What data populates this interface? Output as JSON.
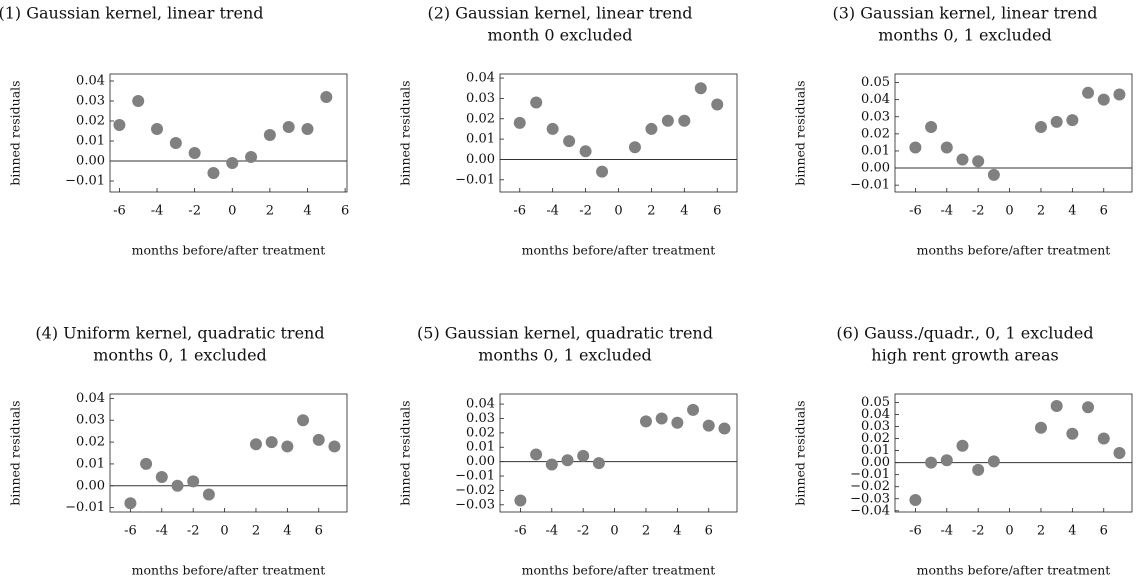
{
  "chart_data": [
    {
      "type": "scatter",
      "title": "(1) Gaussian kernel, linear trend",
      "ylabel": "binned residuals",
      "xlabel": "months before/after treatment",
      "color": "#808080",
      "hline": 0,
      "x": [
        -6,
        -5,
        -4,
        -3,
        -2,
        -1,
        0,
        1,
        2,
        3,
        4,
        5
      ],
      "values": [
        0.018,
        0.03,
        0.016,
        0.009,
        0.004,
        -0.006,
        -0.001,
        0.002,
        0.013,
        0.017,
        0.016,
        0.032
      ],
      "xlim": [
        -6.5,
        6.1
      ],
      "xticks": [
        {
          "value": -6,
          "label": "-6"
        },
        {
          "value": -4,
          "label": "-4"
        },
        {
          "value": -2,
          "label": "-2"
        },
        0,
        2,
        4,
        6
      ],
      "ylim": [
        -0.0155,
        0.0435
      ],
      "yticks": [
        {
          "value": -0.01,
          "label": "−0.01"
        },
        {
          "value": 0,
          "label": "0.00"
        },
        0.01,
        0.02,
        0.03,
        0.04
      ]
    },
    {
      "type": "scatter",
      "title": "(2) Gaussian kernel, linear trend",
      "subtitle": "month 0 excluded",
      "ylabel": "binned residuals",
      "xlabel": "months before/after treatment",
      "color": "#808080",
      "hline": 0,
      "x": [
        -6,
        -5,
        -4,
        -3,
        -2,
        -1,
        1,
        2,
        3,
        4,
        5,
        6
      ],
      "values": [
        0.018,
        0.028,
        0.015,
        0.009,
        0.004,
        -0.006,
        0.006,
        0.015,
        0.019,
        0.019,
        0.035,
        0.027
      ],
      "xlim": [
        -7.2,
        7.2
      ],
      "xticks": [
        {
          "value": -6,
          "label": "-6"
        },
        {
          "value": -4,
          "label": "-4"
        },
        {
          "value": -2,
          "label": "-2"
        },
        0,
        2,
        4,
        6
      ],
      "ylim": [
        -0.016,
        0.042
      ],
      "yticks": [
        {
          "value": -0.01,
          "label": "−0.01"
        },
        {
          "value": 0,
          "label": "0.00"
        },
        0.01,
        0.02,
        0.03,
        0.04
      ]
    },
    {
      "type": "scatter",
      "title": "(3) Gaussian kernel, linear trend",
      "subtitle": "months 0, 1 excluded",
      "ylabel": "binned residuals",
      "xlabel": "months before/after treatment",
      "color": "#808080",
      "hline": 0,
      "x": [
        -6,
        -5,
        -4,
        -3,
        -2,
        -1,
        2,
        3,
        4,
        5,
        6,
        7
      ],
      "values": [
        0.012,
        0.024,
        0.012,
        0.005,
        0.004,
        -0.004,
        0.024,
        0.027,
        0.028,
        0.044,
        0.04,
        0.043
      ],
      "xlim": [
        -7.3,
        7.8
      ],
      "xticks": [
        {
          "value": -6,
          "label": "-6"
        },
        {
          "value": -4,
          "label": "-4"
        },
        {
          "value": -2,
          "label": "-2"
        },
        0,
        2,
        4,
        6
      ],
      "ylim": [
        -0.014,
        0.055
      ],
      "yticks": [
        {
          "value": -0.01,
          "label": "−0.01"
        },
        {
          "value": 0,
          "label": "0.00"
        },
        0.01,
        0.02,
        0.03,
        0.04,
        0.05
      ]
    },
    {
      "type": "scatter",
      "title": "(4) Uniform kernel, quadratic trend",
      "subtitle": "months 0, 1 excluded",
      "ylabel": "binned residuals",
      "xlabel": "months before/after treatment",
      "color": "#808080",
      "hline": 0,
      "x": [
        -6,
        -5,
        -4,
        -3,
        -2,
        -1,
        2,
        3,
        4,
        5,
        6,
        7
      ],
      "values": [
        -0.008,
        0.01,
        0.004,
        0.0,
        0.002,
        -0.004,
        0.019,
        0.02,
        0.018,
        0.03,
        0.021,
        0.018
      ],
      "xlim": [
        -7.3,
        7.8
      ],
      "xticks": [
        {
          "value": -6,
          "label": "-6"
        },
        {
          "value": -4,
          "label": "-4"
        },
        {
          "value": -2,
          "label": "-2"
        },
        0,
        2,
        4,
        6
      ],
      "ylim": [
        -0.012,
        0.042
      ],
      "yticks": [
        {
          "value": -0.01,
          "label": "−0.01"
        },
        {
          "value": 0,
          "label": "0.00"
        },
        0.01,
        0.02,
        0.03,
        0.04
      ]
    },
    {
      "type": "scatter",
      "title": "(5) Gaussian kernel, quadratic trend",
      "subtitle": "months 0, 1 excluded",
      "ylabel": "binned residuals",
      "xlabel": "months before/after treatment",
      "color": "#808080",
      "hline": 0,
      "x": [
        -6,
        -5,
        -4,
        -3,
        -2,
        -1,
        2,
        3,
        4,
        5,
        6,
        7
      ],
      "values": [
        -0.027,
        0.005,
        -0.002,
        0.001,
        0.004,
        -0.001,
        0.028,
        0.03,
        0.027,
        0.036,
        0.025,
        0.023
      ],
      "xlim": [
        -7.3,
        7.8
      ],
      "xticks": [
        {
          "value": -6,
          "label": "-6"
        },
        {
          "value": -4,
          "label": "-4"
        },
        {
          "value": -2,
          "label": "-2"
        },
        0,
        2,
        4,
        6
      ],
      "ylim": [
        -0.035,
        0.047
      ],
      "yticks": [
        {
          "value": -0.03,
          "label": "−0.03"
        },
        {
          "value": -0.02,
          "label": "−0.02"
        },
        {
          "value": -0.01,
          "label": "−0.01"
        },
        {
          "value": 0,
          "label": "0.00"
        },
        0.01,
        0.02,
        0.03,
        0.04
      ]
    },
    {
      "type": "scatter",
      "title": "(6) Gauss./quadr., 0, 1 excluded",
      "subtitle": "high rent growth areas",
      "ylabel": "binned residuals",
      "xlabel": "months before/after treatment",
      "color": "#808080",
      "hline": 0,
      "x": [
        -6,
        -5,
        -4,
        -3,
        -2,
        -1,
        2,
        3,
        4,
        5,
        6,
        7
      ],
      "values": [
        -0.031,
        0.0,
        0.002,
        0.014,
        -0.006,
        0.001,
        0.029,
        0.047,
        0.024,
        0.046,
        0.02,
        0.008
      ],
      "xlim": [
        -7.3,
        7.8
      ],
      "xticks": [
        {
          "value": -6,
          "label": "-6"
        },
        {
          "value": -4,
          "label": "-4"
        },
        {
          "value": -2,
          "label": "-2"
        },
        0,
        2,
        4,
        6
      ],
      "ylim": [
        -0.041,
        0.057
      ],
      "yticks": [
        {
          "value": -0.04,
          "label": "−0.04"
        },
        {
          "value": -0.03,
          "label": "−0.03"
        },
        {
          "value": -0.02,
          "label": "−0.02"
        },
        {
          "value": -0.01,
          "label": "−0.01"
        },
        {
          "value": 0,
          "label": "0.00"
        },
        0.01,
        0.02,
        0.03,
        0.04,
        0.05
      ]
    }
  ]
}
